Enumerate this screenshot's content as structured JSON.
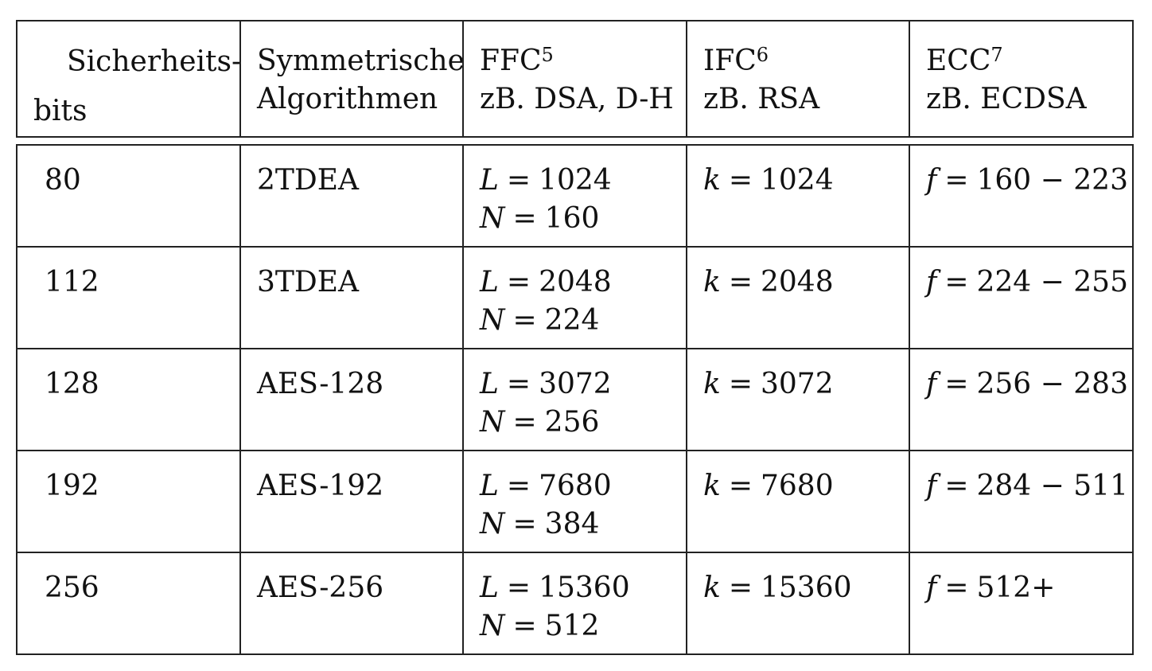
{
  "table": {
    "header": {
      "security_bits_line1": "Sicherheits-",
      "security_bits_line2": "bits",
      "symmetric_line1": "Symmetrische",
      "symmetric_line2": "Algorithmen",
      "ffc_label": "FFC",
      "ffc_footnote": "5",
      "ffc_example": "zB. DSA, D-H",
      "ifc_label": "IFC",
      "ifc_footnote": "6",
      "ifc_example": "zB. RSA",
      "ecc_label": "ECC",
      "ecc_footnote": "7",
      "ecc_example": "zB. ECDSA"
    },
    "rows": [
      {
        "security_bits": "80",
        "symmetric": "2TDEA",
        "L": "1024",
        "N": "160",
        "k": "1024",
        "f": "160 − 223"
      },
      {
        "security_bits": "112",
        "symmetric": "3TDEA",
        "L": "2048",
        "N": "224",
        "k": "2048",
        "f": "224 − 255"
      },
      {
        "security_bits": "128",
        "symmetric": "AES-128",
        "L": "3072",
        "N": "256",
        "k": "3072",
        "f": "256 − 283"
      },
      {
        "security_bits": "192",
        "symmetric": "AES-192",
        "L": "7680",
        "N": "384",
        "k": "7680",
        "f": "284 − 511"
      },
      {
        "security_bits": "256",
        "symmetric": "AES-256",
        "L": "15360",
        "N": "512",
        "k": "15360",
        "f": "512+"
      }
    ]
  },
  "symbols": {
    "L": "L",
    "N": "N",
    "k": "k",
    "f": "f",
    "equals": "="
  }
}
